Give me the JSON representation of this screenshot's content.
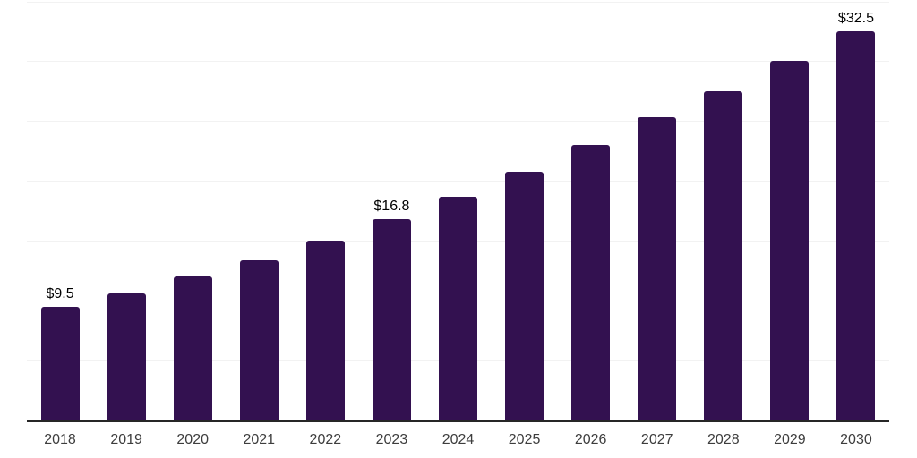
{
  "chart_data": {
    "type": "bar",
    "title": "",
    "xlabel": "",
    "ylabel": "",
    "categories": [
      "2018",
      "2019",
      "2020",
      "2021",
      "2022",
      "2023",
      "2024",
      "2025",
      "2026",
      "2027",
      "2028",
      "2029",
      "2030"
    ],
    "values": [
      9.5,
      10.6,
      12.0,
      13.4,
      15.0,
      16.8,
      18.7,
      20.8,
      23.0,
      25.3,
      27.5,
      30.0,
      32.5
    ],
    "value_labels": [
      "$9.5",
      "",
      "",
      "",
      "",
      "$16.8",
      "",
      "",
      "",
      "",
      "",
      "",
      "$32.5"
    ],
    "ylim": [
      0,
      35
    ],
    "gridline_step": 5,
    "grid": true,
    "legend": false,
    "colors": {
      "bar": "#331150",
      "axis": "#262626",
      "gridline": "#f2f2f2",
      "value_label": "#000000",
      "tick_label": "#3d3d3d",
      "background": "#ffffff"
    }
  }
}
